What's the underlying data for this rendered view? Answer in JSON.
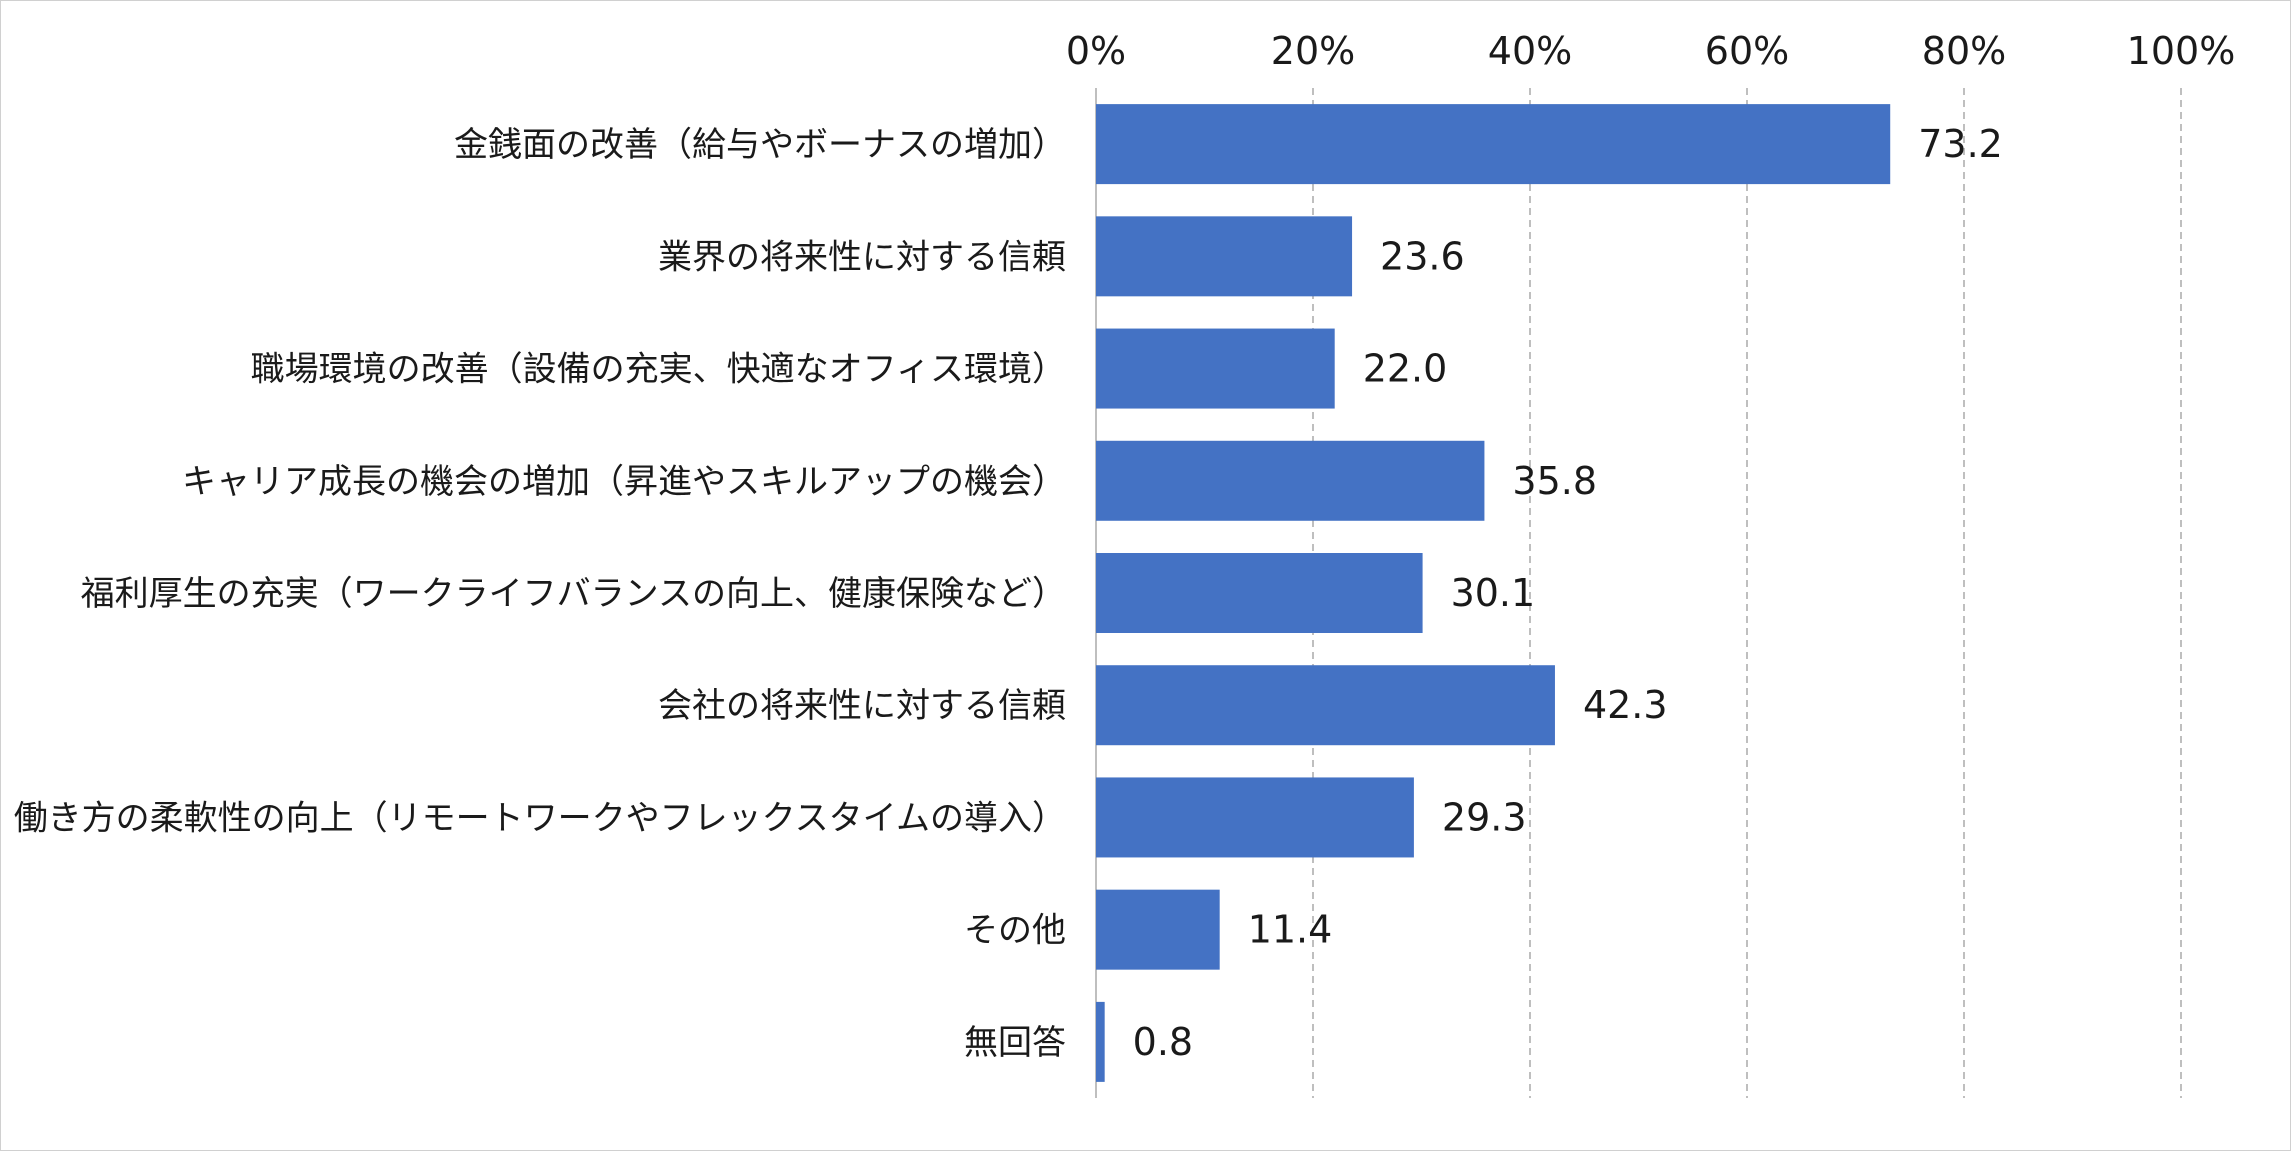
{
  "chart_data": {
    "type": "bar",
    "orientation": "horizontal",
    "categories": [
      "金銭面の改善（給与やボーナスの増加）",
      "業界の将来性に対する信頼",
      "職場環境の改善（設備の充実、快適なオフィス環境）",
      "キャリア成長の機会の増加（昇進やスキルアップの機会）",
      "福利厚生の充実（ワークライフバランスの向上、健康保険など）",
      "会社の将来性に対する信頼",
      "働き方の柔軟性の向上（リモートワークやフレックスタイムの導入）",
      "その他",
      "無回答"
    ],
    "values": [
      73.2,
      23.6,
      22.0,
      35.8,
      30.1,
      42.3,
      29.3,
      11.4,
      0.8
    ],
    "value_labels": [
      "73.2",
      "23.6",
      "22.0",
      "35.8",
      "30.1",
      "42.3",
      "29.3",
      "11.4",
      "0.8"
    ],
    "xlim": [
      0,
      100
    ],
    "x_ticks": [
      0,
      20,
      40,
      60,
      80,
      100
    ],
    "x_tick_labels": [
      "0%",
      "20%",
      "40%",
      "60%",
      "80%",
      "100%"
    ],
    "x_axis_position": "top",
    "gridlines": "vertical-dashed",
    "legend": "none",
    "bar_color": "#4472C4",
    "grid_color": "#bfbfbf",
    "axis_color": "#bfbfbf"
  }
}
